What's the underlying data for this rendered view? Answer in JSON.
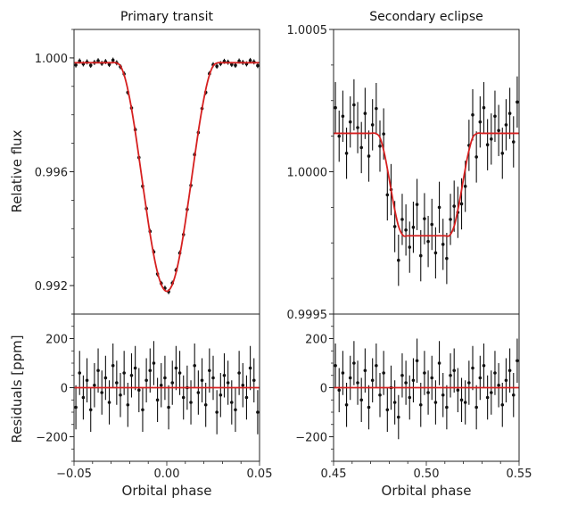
{
  "chart_data": [
    {
      "type": "scatter",
      "title": "Primary transit",
      "panels": {
        "top": {
          "ylabel": "Relative flux",
          "ylim": [
            0.991,
            1.001
          ],
          "yticks": [
            "1.000",
            "0.996",
            "0.992"
          ],
          "model": {
            "x": [
              -0.05,
              -0.0475,
              -0.045,
              -0.0425,
              -0.04,
              -0.0375,
              -0.035,
              -0.0325,
              -0.03,
              -0.0275,
              -0.025,
              -0.0225,
              -0.02,
              -0.0175,
              -0.015,
              -0.0125,
              -0.01,
              -0.0075,
              -0.005,
              -0.0025,
              0,
              0.0025,
              0.005,
              0.0075,
              0.01,
              0.0125,
              0.015,
              0.0175,
              0.02,
              0.0225,
              0.025,
              0.0275,
              0.03,
              0.0325,
              0.035,
              0.0375,
              0.04,
              0.0425,
              0.045,
              0.0475,
              0.05
            ],
            "y": [
              0.99983,
              0.99983,
              0.99983,
              0.99983,
              0.99983,
              0.99983,
              0.99983,
              0.99983,
              0.99983,
              0.99983,
              0.99972,
              0.99929,
              0.99857,
              0.99762,
              0.99651,
              0.99535,
              0.99423,
              0.99324,
              0.99246,
              0.99197,
              0.9918,
              0.99197,
              0.99246,
              0.99324,
              0.99423,
              0.99535,
              0.99651,
              0.99762,
              0.99857,
              0.99929,
              0.99972,
              0.99983,
              0.99983,
              0.99983,
              0.99983,
              0.99983,
              0.99983,
              0.99983,
              0.99983,
              0.99983,
              0.99983
            ]
          }
        },
        "bottom": {
          "ylabel": "Residuals [ppm]",
          "ylim": [
            -300,
            300
          ],
          "yticks": [
            "200",
            "0",
            "−200"
          ]
        }
      },
      "x": [
        -0.049,
        -0.047,
        -0.045,
        -0.043,
        -0.041,
        -0.039,
        -0.037,
        -0.035,
        -0.033,
        -0.031,
        -0.029,
        -0.027,
        -0.025,
        -0.023,
        -0.021,
        -0.019,
        -0.017,
        -0.015,
        -0.013,
        -0.011,
        -0.009,
        -0.007,
        -0.005,
        -0.003,
        -0.001,
        0.001,
        0.003,
        0.005,
        0.007,
        0.009,
        0.011,
        0.013,
        0.015,
        0.017,
        0.019,
        0.021,
        0.023,
        0.025,
        0.027,
        0.029,
        0.031,
        0.033,
        0.035,
        0.037,
        0.039,
        0.041,
        0.043,
        0.045,
        0.047,
        0.049
      ],
      "residuals_ppm": [
        -80,
        60,
        -40,
        30,
        -90,
        10,
        70,
        -20,
        40,
        -60,
        90,
        20,
        -30,
        60,
        -70,
        50,
        80,
        -10,
        -90,
        30,
        70,
        100,
        -50,
        10,
        40,
        -80,
        20,
        80,
        60,
        -40,
        0,
        -60,
        90,
        -20,
        30,
        -70,
        70,
        40,
        -100,
        -30,
        50,
        20,
        -60,
        -90,
        60,
        10,
        -40,
        80,
        30,
        -100
      ],
      "yerr_ppm": 90,
      "xlim": [
        -0.05,
        0.05
      ],
      "xticks": [
        "−0.05",
        "0.00",
        "0.05"
      ],
      "xlabel": "Orbital phase",
      "colors": {
        "data": "#111111",
        "model": "#d62020"
      }
    },
    {
      "type": "scatter",
      "title": "Secondary eclipse",
      "panels": {
        "top": {
          "ylabel": "",
          "ylim": [
            0.9995,
            1.0005
          ],
          "yticks": [
            "1.0005",
            "1.0000",
            "0.9995"
          ],
          "model": {
            "x": [
              0.45,
              0.4525,
              0.455,
              0.4575,
              0.46,
              0.4625,
              0.465,
              0.4675,
              0.47,
              0.4725,
              0.475,
              0.4775,
              0.48,
              0.4825,
              0.485,
              0.4875,
              0.49,
              0.4925,
              0.495,
              0.4975,
              0.5,
              0.5025,
              0.505,
              0.5075,
              0.51,
              0.5125,
              0.515,
              0.5175,
              0.52,
              0.5225,
              0.525,
              0.5275,
              0.53,
              0.5325,
              0.535,
              0.5375,
              0.54,
              0.5425,
              0.545,
              0.5475,
              0.55
            ],
            "y": [
              1.000135,
              1.000135,
              1.000135,
              1.000135,
              1.000135,
              1.000135,
              1.000135,
              1.000135,
              1.000135,
              1.000135,
              1.00012,
              1.000061,
              0.999974,
              0.999882,
              0.999809,
              0.999776,
              0.999775,
              0.999775,
              0.999775,
              0.999775,
              0.999775,
              0.999775,
              0.999775,
              0.999775,
              0.999775,
              0.999776,
              0.999809,
              0.999882,
              0.999974,
              1.000061,
              1.00012,
              1.000135,
              1.000135,
              1.000135,
              1.000135,
              1.000135,
              1.000135,
              1.000135,
              1.000135,
              1.000135,
              1.000135
            ]
          }
        },
        "bottom": {
          "ylabel": "",
          "ylim": [
            -300,
            300
          ],
          "yticks": [
            "200",
            "0",
            "−200"
          ]
        }
      },
      "x": [
        0.451,
        0.453,
        0.455,
        0.457,
        0.459,
        0.461,
        0.463,
        0.465,
        0.467,
        0.469,
        0.471,
        0.473,
        0.475,
        0.477,
        0.479,
        0.481,
        0.483,
        0.485,
        0.487,
        0.489,
        0.491,
        0.493,
        0.495,
        0.497,
        0.499,
        0.501,
        0.503,
        0.505,
        0.507,
        0.509,
        0.511,
        0.513,
        0.515,
        0.517,
        0.519,
        0.521,
        0.523,
        0.525,
        0.527,
        0.529,
        0.531,
        0.533,
        0.535,
        0.537,
        0.539,
        0.541,
        0.543,
        0.545,
        0.547,
        0.549
      ],
      "residuals_ppm": [
        90,
        -10,
        60,
        -70,
        40,
        100,
        20,
        -50,
        70,
        -80,
        30,
        90,
        -30,
        60,
        -90,
        0,
        -60,
        -120,
        50,
        20,
        -40,
        30,
        110,
        -70,
        60,
        -20,
        40,
        -60,
        100,
        -30,
        -80,
        50,
        70,
        -10,
        -50,
        -60,
        20,
        80,
        -80,
        40,
        90,
        -40,
        -20,
        60,
        10,
        -70,
        30,
        70,
        -30,
        110
      ],
      "yerr_ppm": 90,
      "xlim": [
        0.45,
        0.55
      ],
      "xticks": [
        "0.45",
        "0.50",
        "0.55"
      ],
      "xlabel": "Orbital phase",
      "colors": {
        "data": "#111111",
        "model": "#d62020"
      }
    }
  ]
}
